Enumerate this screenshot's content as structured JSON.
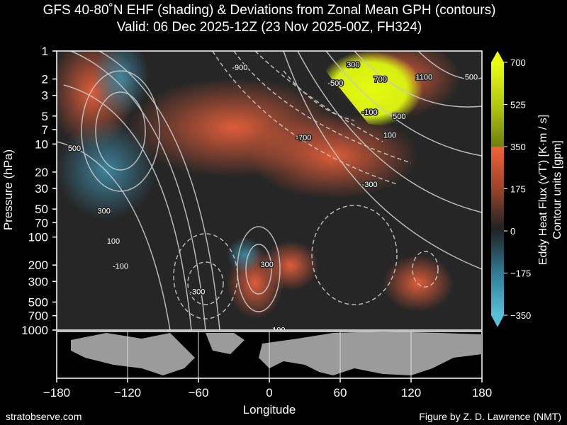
{
  "title": "GFS 40-80˚N EHF (shading) & Deviations from Zonal Mean GPH (contours)",
  "subtitle": "Valid: 06 Dec 2025-12Z  (23 Nov 2025-00Z, FH324)",
  "credits": {
    "left": "stratobserve.com",
    "right": "Figure by Z. D. Lawrence (NMT)"
  },
  "chart_data": {
    "type": "heatmap",
    "xlabel": "Longitude",
    "ylabel": "Pressure (hPa)",
    "xlim": [
      -180,
      180
    ],
    "ylim": [
      1000,
      1
    ],
    "y_scale": "log",
    "x_ticks": [
      -180,
      -120,
      -60,
      0,
      60,
      120,
      180
    ],
    "x_tick_labels": [
      "−180",
      "−120",
      "−60",
      "0",
      "60",
      "120",
      "180"
    ],
    "y_ticks": [
      1,
      2,
      3,
      5,
      7,
      10,
      20,
      30,
      50,
      70,
      100,
      200,
      300,
      500,
      700,
      1000
    ],
    "colorbar": {
      "label1": "Eddy Heat Flux (v'T') [K·m / s]",
      "label2": "Contour units [gpm]",
      "ticks": [
        700,
        525,
        350,
        175,
        0,
        -175,
        -350
      ],
      "tick_labels": [
        "700",
        "525",
        "350",
        "175",
        "0",
        "−175",
        "−350"
      ],
      "range": [
        -350,
        700
      ]
    },
    "contour_labels": [
      {
        "text": "-900",
        "lon": -25,
        "p": 1.5
      },
      {
        "text": "-500",
        "lon": 56,
        "p": 2.2
      },
      {
        "text": "300",
        "lon": 71,
        "p": 1.4
      },
      {
        "text": "700",
        "lon": 94,
        "p": 2.0
      },
      {
        "text": "1100",
        "lon": 131,
        "p": 1.9
      },
      {
        "text": "500",
        "lon": 171,
        "p": 1.9
      },
      {
        "text": "-100",
        "lon": 85,
        "p": 4.5
      },
      {
        "text": "500",
        "lon": 110,
        "p": 5.0
      },
      {
        "text": "100",
        "lon": 102,
        "p": 8.0
      },
      {
        "text": "-700",
        "lon": 29,
        "p": 8.5
      },
      {
        "text": "500",
        "lon": -165,
        "p": 11
      },
      {
        "text": "-300",
        "lon": 85,
        "p": 27
      },
      {
        "text": "300",
        "lon": -140,
        "p": 52
      },
      {
        "text": "100",
        "lon": -132,
        "p": 110
      },
      {
        "text": "-100",
        "lon": -126,
        "p": 205
      },
      {
        "text": "300",
        "lon": -2,
        "p": 195
      },
      {
        "text": "-300",
        "lon": -61,
        "p": 385
      },
      {
        "text": "100",
        "lon": 8,
        "p": 990
      }
    ],
    "ehf_features": [
      {
        "sign": "positive",
        "lon": -165,
        "p": 7,
        "value": 250
      },
      {
        "sign": "positive",
        "lon": -40,
        "p": 20,
        "value": 240
      },
      {
        "sign": "positive",
        "lon": 20,
        "p": 15,
        "value": 230
      },
      {
        "sign": "positive",
        "lon": -10,
        "p": 300,
        "value": 330
      },
      {
        "sign": "positive",
        "lon": 30,
        "p": 250,
        "value": 240
      },
      {
        "sign": "positive",
        "lon": 95,
        "p": 3,
        "value": 700
      },
      {
        "sign": "negative",
        "lon": -130,
        "p": 30,
        "value": -160
      },
      {
        "sign": "negative",
        "lon": -150,
        "p": 3,
        "value": -120
      },
      {
        "sign": "negative",
        "lon": -5,
        "p": 250,
        "value": -230
      }
    ]
  }
}
